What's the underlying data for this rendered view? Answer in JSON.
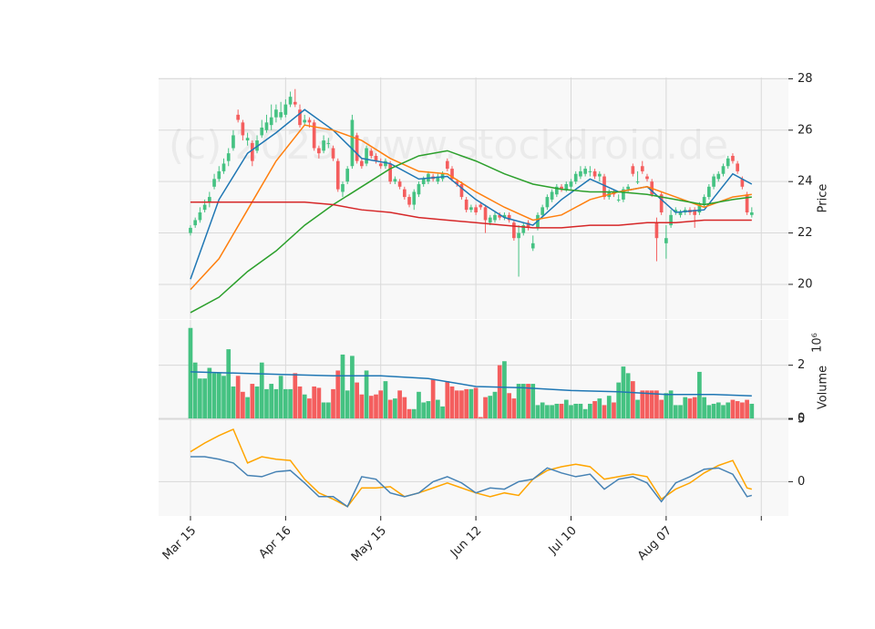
{
  "chart_data": [
    {
      "type": "candlestick",
      "ylabel": "Price",
      "watermark": "(c) 2023 www.stockdroid.de",
      "xlim": [
        -6.7,
        125.7
      ],
      "ylim": [
        18.65,
        28.05
      ],
      "yticks": [
        20,
        22,
        24,
        26,
        28
      ],
      "grid": true,
      "up_color": "#45c282",
      "down_color": "#f45e5e",
      "ohlc": [
        [
          22.0,
          22.3,
          21.9,
          22.2
        ],
        [
          22.3,
          22.6,
          22.2,
          22.5
        ],
        [
          22.5,
          23.0,
          22.4,
          22.8
        ],
        [
          22.9,
          23.3,
          22.8,
          23.1
        ],
        [
          23.2,
          23.6,
          23.0,
          23.4
        ],
        [
          23.8,
          24.3,
          23.7,
          24.1
        ],
        [
          24.1,
          24.6,
          24.0,
          24.4
        ],
        [
          24.4,
          24.9,
          24.3,
          24.7
        ],
        [
          24.8,
          25.3,
          24.6,
          25.1
        ],
        [
          25.3,
          26.0,
          25.2,
          25.8
        ],
        [
          26.6,
          26.8,
          26.3,
          26.4
        ],
        [
          26.3,
          26.4,
          25.6,
          25.8
        ],
        [
          25.6,
          25.9,
          25.4,
          25.7
        ],
        [
          25.5,
          25.6,
          24.6,
          24.8
        ],
        [
          25.2,
          25.8,
          25.1,
          25.6
        ],
        [
          25.8,
          26.4,
          25.7,
          26.1
        ],
        [
          26.0,
          26.6,
          25.9,
          26.3
        ],
        [
          26.2,
          27.0,
          26.0,
          26.5
        ],
        [
          26.5,
          27.0,
          26.3,
          26.8
        ],
        [
          26.5,
          27.1,
          26.4,
          26.7
        ],
        [
          26.6,
          27.2,
          26.5,
          27.0
        ],
        [
          27.0,
          27.5,
          26.9,
          27.3
        ],
        [
          27.1,
          27.6,
          26.9,
          27.0
        ],
        [
          26.8,
          27.0,
          26.1,
          26.2
        ],
        [
          26.3,
          26.6,
          26.2,
          26.4
        ],
        [
          26.4,
          26.5,
          26.1,
          26.3
        ],
        [
          26.3,
          26.4,
          25.2,
          25.3
        ],
        [
          25.3,
          25.4,
          24.9,
          25.1
        ],
        [
          25.2,
          25.8,
          25.1,
          25.6
        ],
        [
          25.5,
          25.7,
          25.3,
          25.5
        ],
        [
          25.3,
          25.4,
          24.8,
          24.9
        ],
        [
          24.8,
          24.9,
          23.6,
          23.7
        ],
        [
          23.6,
          24.0,
          23.4,
          23.9
        ],
        [
          24.0,
          24.6,
          23.9,
          24.5
        ],
        [
          24.6,
          26.6,
          24.5,
          26.4
        ],
        [
          25.8,
          25.9,
          24.7,
          24.8
        ],
        [
          24.8,
          24.9,
          24.5,
          24.6
        ],
        [
          24.7,
          25.4,
          24.6,
          25.3
        ],
        [
          25.2,
          25.3,
          24.9,
          25.0
        ],
        [
          25.0,
          25.1,
          24.7,
          24.8
        ],
        [
          24.7,
          24.9,
          24.5,
          24.6
        ],
        [
          24.6,
          24.9,
          24.5,
          24.8
        ],
        [
          24.7,
          24.8,
          23.9,
          24.0
        ],
        [
          24.0,
          24.2,
          23.9,
          24.1
        ],
        [
          24.0,
          24.1,
          23.7,
          23.8
        ],
        [
          23.7,
          23.8,
          23.3,
          23.4
        ],
        [
          23.4,
          23.5,
          23.0,
          23.1
        ],
        [
          23.1,
          23.7,
          22.9,
          23.6
        ],
        [
          23.5,
          24.0,
          23.4,
          23.9
        ],
        [
          23.9,
          24.2,
          23.8,
          24.1
        ],
        [
          24.0,
          24.4,
          23.9,
          24.3
        ],
        [
          24.2,
          24.3,
          24.0,
          24.1
        ],
        [
          24.0,
          24.3,
          23.9,
          24.2
        ],
        [
          24.1,
          24.4,
          24.0,
          24.3
        ],
        [
          24.8,
          24.9,
          24.4,
          24.5
        ],
        [
          24.5,
          24.6,
          24.0,
          24.1
        ],
        [
          24.0,
          24.1,
          23.8,
          23.9
        ],
        [
          23.9,
          24.0,
          23.3,
          23.4
        ],
        [
          23.3,
          23.4,
          22.8,
          22.9
        ],
        [
          22.9,
          23.1,
          22.8,
          23.0
        ],
        [
          23.0,
          23.1,
          22.7,
          22.8
        ],
        [
          23.1,
          23.2,
          22.9,
          23.0
        ],
        [
          23.0,
          23.1,
          22.0,
          22.5
        ],
        [
          22.4,
          22.7,
          22.3,
          22.6
        ],
        [
          22.5,
          22.8,
          22.4,
          22.7
        ],
        [
          22.7,
          22.8,
          22.5,
          22.6
        ],
        [
          22.6,
          22.8,
          22.5,
          22.7
        ],
        [
          22.7,
          22.8,
          22.4,
          22.5
        ],
        [
          22.4,
          22.5,
          21.7,
          21.8
        ],
        [
          21.8,
          22.3,
          20.3,
          22.0
        ],
        [
          22.0,
          22.4,
          21.9,
          22.3
        ],
        [
          22.4,
          22.5,
          22.1,
          22.2
        ],
        [
          21.4,
          21.9,
          21.3,
          21.6
        ],
        [
          22.2,
          22.8,
          22.1,
          22.7
        ],
        [
          22.7,
          23.1,
          22.6,
          23.0
        ],
        [
          23.0,
          23.5,
          22.9,
          23.4
        ],
        [
          23.3,
          23.7,
          23.2,
          23.6
        ],
        [
          23.5,
          23.9,
          23.4,
          23.8
        ],
        [
          23.8,
          23.9,
          23.6,
          23.7
        ],
        [
          23.7,
          24.0,
          23.6,
          23.9
        ],
        [
          23.8,
          24.1,
          23.7,
          24.0
        ],
        [
          24.0,
          24.4,
          23.9,
          24.3
        ],
        [
          24.2,
          24.6,
          24.1,
          24.4
        ],
        [
          24.3,
          24.6,
          24.2,
          24.5
        ],
        [
          24.4,
          24.6,
          24.2,
          24.4
        ],
        [
          24.4,
          24.5,
          24.1,
          24.2
        ],
        [
          24.2,
          24.4,
          24.0,
          24.3
        ],
        [
          24.2,
          24.3,
          23.3,
          23.4
        ],
        [
          23.4,
          23.7,
          23.3,
          23.6
        ],
        [
          23.6,
          23.7,
          23.4,
          23.5
        ],
        [
          23.3,
          23.5,
          23.2,
          23.3
        ],
        [
          23.3,
          23.8,
          23.2,
          23.7
        ],
        [
          23.7,
          23.9,
          23.6,
          23.8
        ],
        [
          24.6,
          24.7,
          24.2,
          24.3
        ],
        [
          24.0,
          24.4,
          23.9,
          24.0
        ],
        [
          24.6,
          24.8,
          24.3,
          24.4
        ],
        [
          24.2,
          24.3,
          24.0,
          24.1
        ],
        [
          24.0,
          24.1,
          23.4,
          23.5
        ],
        [
          22.4,
          22.6,
          20.9,
          21.8
        ],
        [
          23.5,
          23.6,
          22.7,
          22.8
        ],
        [
          21.6,
          22.3,
          21.0,
          21.8
        ],
        [
          22.3,
          22.9,
          22.2,
          22.7
        ],
        [
          22.8,
          23.0,
          22.7,
          22.9
        ],
        [
          22.7,
          22.9,
          22.6,
          22.8
        ],
        [
          22.8,
          23.0,
          22.7,
          22.9
        ],
        [
          22.9,
          23.0,
          22.7,
          22.8
        ],
        [
          22.9,
          23.0,
          22.2,
          22.7
        ],
        [
          22.8,
          23.2,
          22.7,
          23.1
        ],
        [
          23.1,
          23.5,
          23.0,
          23.4
        ],
        [
          23.4,
          23.9,
          23.3,
          23.8
        ],
        [
          23.8,
          24.3,
          23.7,
          24.2
        ],
        [
          24.1,
          24.4,
          24.0,
          24.3
        ],
        [
          24.3,
          24.7,
          24.2,
          24.6
        ],
        [
          24.6,
          25.0,
          24.5,
          24.9
        ],
        [
          25.0,
          25.1,
          24.7,
          24.8
        ],
        [
          24.7,
          24.8,
          24.3,
          24.4
        ],
        [
          24.1,
          24.2,
          23.7,
          23.8
        ],
        [
          23.5,
          23.6,
          22.7,
          22.8
        ],
        [
          22.7,
          23.0,
          22.6,
          22.8
        ]
      ],
      "series": [
        {
          "color": "#1f77b4",
          "x": [
            0,
            6,
            12,
            18,
            24,
            30,
            36,
            42,
            48,
            54,
            60,
            66,
            72,
            78,
            84,
            90,
            96,
            102,
            108,
            114,
            118
          ],
          "values": [
            20.2,
            23.3,
            25.1,
            25.9,
            26.8,
            26.0,
            24.9,
            24.7,
            24.1,
            24.2,
            23.3,
            22.6,
            22.3,
            23.3,
            24.1,
            23.6,
            23.8,
            22.8,
            22.9,
            24.3,
            23.9
          ]
        },
        {
          "color": "#ff7f0e",
          "x": [
            0,
            6,
            12,
            18,
            24,
            30,
            36,
            42,
            48,
            54,
            60,
            66,
            72,
            78,
            84,
            90,
            96,
            102,
            108,
            114,
            118
          ],
          "values": [
            19.8,
            21.0,
            22.9,
            24.8,
            26.2,
            26.0,
            25.6,
            24.9,
            24.4,
            24.3,
            23.6,
            23.0,
            22.5,
            22.7,
            23.3,
            23.6,
            23.8,
            23.4,
            23.0,
            23.4,
            23.5
          ]
        },
        {
          "color": "#2ca02c",
          "x": [
            0,
            6,
            12,
            18,
            24,
            30,
            36,
            42,
            48,
            54,
            60,
            66,
            72,
            78,
            84,
            90,
            96,
            102,
            108,
            114,
            118
          ],
          "values": [
            18.9,
            19.5,
            20.5,
            21.3,
            22.3,
            23.1,
            23.8,
            24.5,
            25.0,
            25.2,
            24.8,
            24.3,
            23.9,
            23.7,
            23.6,
            23.6,
            23.5,
            23.3,
            23.1,
            23.3,
            23.4
          ]
        },
        {
          "color": "#d62728",
          "x": [
            0,
            6,
            12,
            18,
            24,
            30,
            36,
            42,
            48,
            54,
            60,
            66,
            72,
            78,
            84,
            90,
            96,
            102,
            108,
            114,
            118
          ],
          "values": [
            23.2,
            23.2,
            23.2,
            23.2,
            23.2,
            23.1,
            22.9,
            22.8,
            22.6,
            22.5,
            22.4,
            22.3,
            22.2,
            22.2,
            22.3,
            22.3,
            22.4,
            22.4,
            22.5,
            22.5,
            22.5
          ]
        }
      ]
    },
    {
      "type": "bar",
      "ylabel": "Volume",
      "offset_label": "10⁶",
      "xlim": [
        -6.7,
        125.7
      ],
      "ylim": [
        0,
        3.7
      ],
      "yticks": [
        0,
        2
      ],
      "grid": true,
      "values": [
        3.4,
        2.1,
        1.5,
        1.5,
        1.9,
        1.7,
        1.7,
        1.6,
        2.6,
        1.2,
        1.6,
        1.0,
        0.8,
        1.3,
        1.2,
        2.1,
        1.1,
        1.3,
        1.1,
        1.6,
        1.1,
        1.1,
        1.7,
        1.2,
        0.9,
        0.75,
        1.2,
        1.15,
        0.6,
        0.6,
        1.1,
        1.8,
        2.4,
        1.05,
        2.35,
        1.35,
        0.9,
        1.8,
        0.85,
        0.9,
        1.05,
        1.4,
        0.7,
        0.75,
        1.05,
        0.8,
        0.35,
        0.35,
        1.0,
        0.6,
        0.65,
        1.45,
        0.7,
        0.45,
        1.4,
        1.2,
        1.05,
        1.05,
        1.1,
        1.1,
        1.15,
        0.05,
        0.8,
        0.85,
        1.0,
        2.0,
        2.15,
        0.95,
        0.75,
        1.3,
        1.3,
        1.3,
        1.3,
        0.5,
        0.6,
        0.5,
        0.5,
        0.55,
        0.55,
        0.7,
        0.5,
        0.55,
        0.55,
        0.35,
        0.55,
        0.65,
        0.75,
        0.5,
        0.85,
        0.6,
        1.35,
        1.95,
        1.7,
        1.4,
        0.7,
        1.05,
        1.05,
        1.05,
        1.05,
        0.7,
        0.95,
        1.05,
        0.5,
        0.5,
        0.8,
        0.75,
        0.8,
        1.75,
        0.8,
        0.5,
        0.55,
        0.6,
        0.5,
        0.6,
        0.7,
        0.65,
        0.6,
        0.7,
        0.55
      ],
      "series": [
        {
          "color": "#1f77b4",
          "x": [
            0,
            10,
            20,
            30,
            40,
            50,
            60,
            70,
            80,
            90,
            100,
            110,
            118
          ],
          "values": [
            1.75,
            1.7,
            1.65,
            1.6,
            1.6,
            1.5,
            1.2,
            1.15,
            1.05,
            1.0,
            0.9,
            0.9,
            0.85
          ]
        }
      ]
    },
    {
      "type": "line",
      "xlim": [
        -6.7,
        125.7
      ],
      "ylim": [
        -2.75,
        5.0
      ],
      "yticks": [
        0,
        5
      ],
      "grid": true,
      "xticks": [
        {
          "value": 0,
          "label": "Mar 15"
        },
        {
          "value": 20,
          "label": "Apr 16"
        },
        {
          "value": 40,
          "label": "May 15"
        },
        {
          "value": 60,
          "label": "Jun 12"
        },
        {
          "value": 80,
          "label": "Jul 10"
        },
        {
          "value": 100,
          "label": "Aug 07"
        },
        {
          "value": 120,
          "label": null
        }
      ],
      "series": [
        {
          "color": "#ffa500",
          "x": [
            0,
            3,
            6,
            9,
            12,
            15,
            18,
            21,
            24,
            27,
            30,
            33,
            36,
            39,
            42,
            45,
            48,
            51,
            54,
            57,
            60,
            63,
            66,
            69,
            72,
            75,
            78,
            81,
            84,
            87,
            90,
            93,
            96,
            99,
            102,
            105,
            108,
            111,
            114,
            117,
            118
          ],
          "values": [
            2.4,
            3.1,
            3.7,
            4.2,
            1.5,
            2.0,
            1.8,
            1.7,
            0.2,
            -0.9,
            -1.4,
            -2.0,
            -0.5,
            -0.5,
            -0.4,
            -1.2,
            -0.9,
            -0.5,
            -0.1,
            -0.5,
            -0.9,
            -1.2,
            -0.9,
            -1.1,
            0.2,
            0.9,
            1.2,
            1.4,
            1.2,
            0.2,
            0.4,
            0.6,
            0.4,
            -1.4,
            -0.6,
            -0.1,
            0.7,
            1.3,
            1.7,
            -0.5,
            -0.6
          ]
        },
        {
          "color": "#4682b4",
          "x": [
            0,
            3,
            6,
            9,
            12,
            15,
            18,
            21,
            24,
            27,
            30,
            33,
            36,
            39,
            42,
            45,
            48,
            51,
            54,
            57,
            60,
            63,
            66,
            69,
            72,
            75,
            78,
            81,
            84,
            87,
            90,
            93,
            96,
            99,
            102,
            105,
            108,
            111,
            114,
            117,
            118
          ],
          "values": [
            2.0,
            2.0,
            1.8,
            1.5,
            0.5,
            0.4,
            0.8,
            0.9,
            -0.1,
            -1.2,
            -1.2,
            -2.0,
            0.4,
            0.2,
            -0.9,
            -1.2,
            -0.9,
            0.0,
            0.4,
            -0.1,
            -0.9,
            -0.5,
            -0.6,
            0.0,
            0.2,
            1.1,
            0.7,
            0.4,
            0.6,
            -0.6,
            0.2,
            0.4,
            -0.1,
            -1.6,
            -0.1,
            0.4,
            1.0,
            1.1,
            0.6,
            -1.2,
            -1.1
          ]
        }
      ]
    }
  ]
}
